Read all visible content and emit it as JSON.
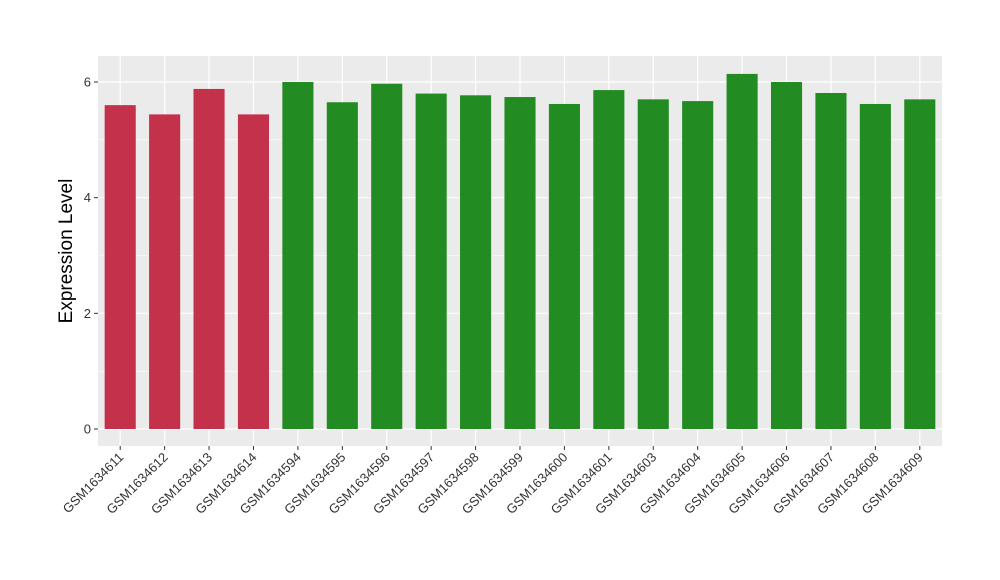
{
  "chart_data": {
    "type": "bar",
    "title": "",
    "xlabel": "",
    "ylabel": "Expression Level",
    "ylim": [
      0,
      6.35
    ],
    "yticks": [
      0,
      2,
      4,
      6
    ],
    "grid": true,
    "colors": {
      "red_group": "#C4314B",
      "green_group": "#228B22",
      "panel": "#EBEBEB",
      "grid": "#FFFFFF"
    },
    "categories": [
      "GSM1634611",
      "GSM1634612",
      "GSM1634613",
      "GSM1634614",
      "GSM1634594",
      "GSM1634595",
      "GSM1634596",
      "GSM1634597",
      "GSM1634598",
      "GSM1634599",
      "GSM1634600",
      "GSM1634601",
      "GSM1634603",
      "GSM1634604",
      "GSM1634605",
      "GSM1634606",
      "GSM1634607",
      "GSM1634608",
      "GSM1634609"
    ],
    "values": [
      5.6,
      5.44,
      5.88,
      5.44,
      6.0,
      5.65,
      5.97,
      5.8,
      5.77,
      5.74,
      5.62,
      5.86,
      5.7,
      5.67,
      6.14,
      6.0,
      5.81,
      5.62,
      5.7
    ],
    "groups": [
      "red_group",
      "red_group",
      "red_group",
      "red_group",
      "green_group",
      "green_group",
      "green_group",
      "green_group",
      "green_group",
      "green_group",
      "green_group",
      "green_group",
      "green_group",
      "green_group",
      "green_group",
      "green_group",
      "green_group",
      "green_group",
      "green_group"
    ]
  }
}
